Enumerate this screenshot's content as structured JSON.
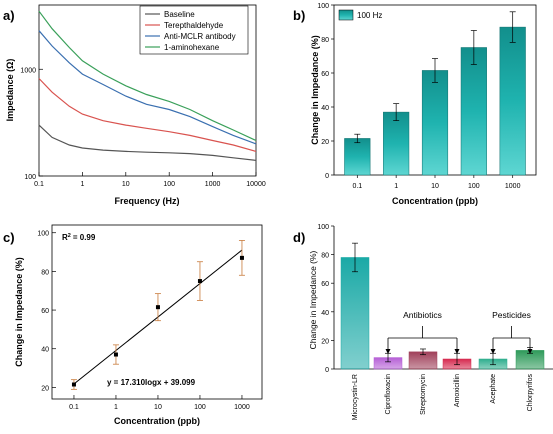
{
  "chart_data": [
    {
      "panel": "a)",
      "type": "line",
      "xlabel": "Frequency (Hz)",
      "ylabel": "Impedance (Ω)",
      "xscale": "log",
      "yscale": "log",
      "xlim": [
        0.1,
        10000
      ],
      "ylim": [
        100,
        4000
      ],
      "xticks": [
        "0.1",
        "1",
        "10",
        "100",
        "1000",
        "10000"
      ],
      "yticks": [
        "100",
        "1000"
      ],
      "legend_position": "top-right",
      "series": [
        {
          "name": "Baseline",
          "color": "#555555",
          "x": [
            0.1,
            0.2,
            0.5,
            1,
            3,
            10,
            30,
            100,
            300,
            1000,
            3000,
            10000
          ],
          "y": [
            300,
            230,
            195,
            183,
            175,
            170,
            167,
            165,
            162,
            156,
            148,
            140
          ]
        },
        {
          "name": "Terepthaldehyde",
          "color": "#d9534f",
          "x": [
            0.1,
            0.2,
            0.5,
            1,
            3,
            10,
            30,
            100,
            300,
            1000,
            3000,
            10000
          ],
          "y": [
            820,
            610,
            450,
            380,
            330,
            300,
            280,
            260,
            240,
            215,
            195,
            170
          ]
        },
        {
          "name": "Anti-MCLR antibody",
          "color": "#3a6fb0",
          "x": [
            0.1,
            0.2,
            0.5,
            1,
            3,
            10,
            30,
            100,
            300,
            1000,
            3000,
            10000
          ],
          "y": [
            2300,
            1650,
            1150,
            900,
            720,
            560,
            470,
            420,
            360,
            290,
            240,
            200
          ]
        },
        {
          "name": "1-aminohexane",
          "color": "#3aa05a",
          "x": [
            0.1,
            0.2,
            0.5,
            1,
            3,
            10,
            30,
            100,
            300,
            1000,
            3000,
            10000
          ],
          "y": [
            3500,
            2400,
            1600,
            1200,
            900,
            700,
            580,
            500,
            420,
            330,
            270,
            215
          ]
        }
      ]
    },
    {
      "panel": "b)",
      "type": "bar",
      "xlabel": "Concentration (ppb)",
      "ylabel": "Change in Impedance (%)",
      "categories": [
        "0.1",
        "1",
        "10",
        "100",
        "1000"
      ],
      "values": [
        21.5,
        37,
        61.5,
        75,
        87
      ],
      "errors": [
        2.5,
        5,
        7,
        10,
        9
      ],
      "ylim": [
        0,
        100
      ],
      "yticks": [
        "0",
        "20",
        "40",
        "60",
        "80",
        "100"
      ],
      "legend": "100 Hz",
      "legend_position": "top-left",
      "color": "#1aa9a6"
    },
    {
      "panel": "c)",
      "type": "scatter",
      "xlabel": "Concentration (ppb)",
      "ylabel": "Change in Impedance (%)",
      "xscale": "log",
      "xlim": [
        0.03,
        3000
      ],
      "ylim": [
        14,
        104
      ],
      "xticks": [
        "0.1",
        "1",
        "10",
        "100",
        "1000"
      ],
      "yticks": [
        "20",
        "40",
        "60",
        "80",
        "100"
      ],
      "x": [
        0.1,
        1,
        10,
        100,
        1000
      ],
      "y": [
        21.5,
        37,
        61.5,
        75,
        87
      ],
      "errors": [
        2.5,
        5,
        7,
        10,
        9
      ],
      "fit": {
        "slope": 17.31,
        "intercept": 39.099
      },
      "r2_label": "R",
      "r2_value": "= 0.99",
      "equation_label": "y = 17.310logx + 39.099"
    },
    {
      "panel": "d)",
      "type": "bar",
      "ylabel": "Change in Impedance (%)",
      "categories": [
        "Microcystin-LR",
        "Ciprofloxacin",
        "Streptomycin",
        "Amoxicillin",
        "Acephate",
        "Chlorpyrifos"
      ],
      "values": [
        78,
        8,
        12,
        7,
        7,
        13
      ],
      "errors": [
        10,
        3,
        2,
        4,
        4,
        2
      ],
      "colors": [
        "#1aa9a6",
        "#b65fd6",
        "#a0405a",
        "#d62a4f",
        "#2fae8e",
        "#2e9a5a"
      ],
      "ylim": [
        0,
        100
      ],
      "yticks": [
        "0",
        "20",
        "40",
        "60",
        "80",
        "100"
      ],
      "groups": [
        {
          "label": "Antibiotics",
          "from": 1,
          "to": 3
        },
        {
          "label": "Pesticides",
          "from": 4,
          "to": 5
        }
      ]
    }
  ]
}
